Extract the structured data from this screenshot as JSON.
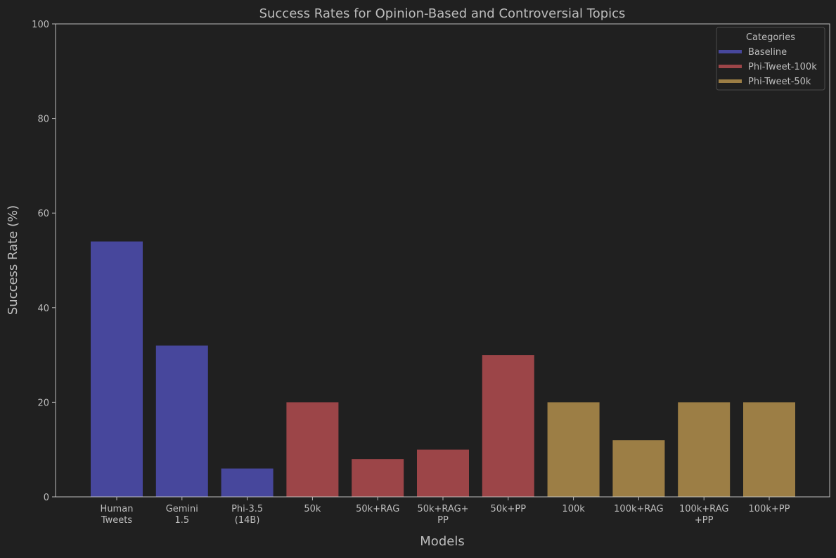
{
  "chart_data": {
    "type": "bar",
    "title": "Success Rates for Opinion-Based and Controversial Topics",
    "xlabel": "Models",
    "ylabel": "Success Rate (%)",
    "ylim": [
      0,
      100
    ],
    "yticks": [
      0,
      20,
      40,
      60,
      80,
      100
    ],
    "grid": false,
    "categories": [
      [
        "Human",
        "Tweets"
      ],
      [
        "Gemini",
        "1.5"
      ],
      [
        "Phi-3.5",
        "(14B)"
      ],
      [
        "50k"
      ],
      [
        "50k+RAG"
      ],
      [
        "50k+RAG+",
        "PP"
      ],
      [
        "50k+PP"
      ],
      [
        "100k"
      ],
      [
        "100k+RAG"
      ],
      [
        "100k+RAG",
        "+PP"
      ],
      [
        "100k+PP"
      ]
    ],
    "values": [
      54,
      32,
      6,
      20,
      8,
      10,
      30,
      20,
      12,
      20,
      20
    ],
    "groups": [
      "Baseline",
      "Baseline",
      "Baseline",
      "Phi-Tweet-100k",
      "Phi-Tweet-100k",
      "Phi-Tweet-100k",
      "Phi-Tweet-100k",
      "Phi-Tweet-50k",
      "Phi-Tweet-50k",
      "Phi-Tweet-50k",
      "Phi-Tweet-50k"
    ],
    "legend": {
      "title": "Categories",
      "placement": "top-right",
      "entries": [
        {
          "name": "Baseline",
          "color": "#47479c"
        },
        {
          "name": "Phi-Tweet-100k",
          "color": "#9c4548"
        },
        {
          "name": "Phi-Tweet-50k",
          "color": "#9c7e45"
        }
      ]
    }
  },
  "colors": {
    "background": "#202020",
    "text": "#bdbdbd",
    "axis": "#bdbdbd"
  }
}
